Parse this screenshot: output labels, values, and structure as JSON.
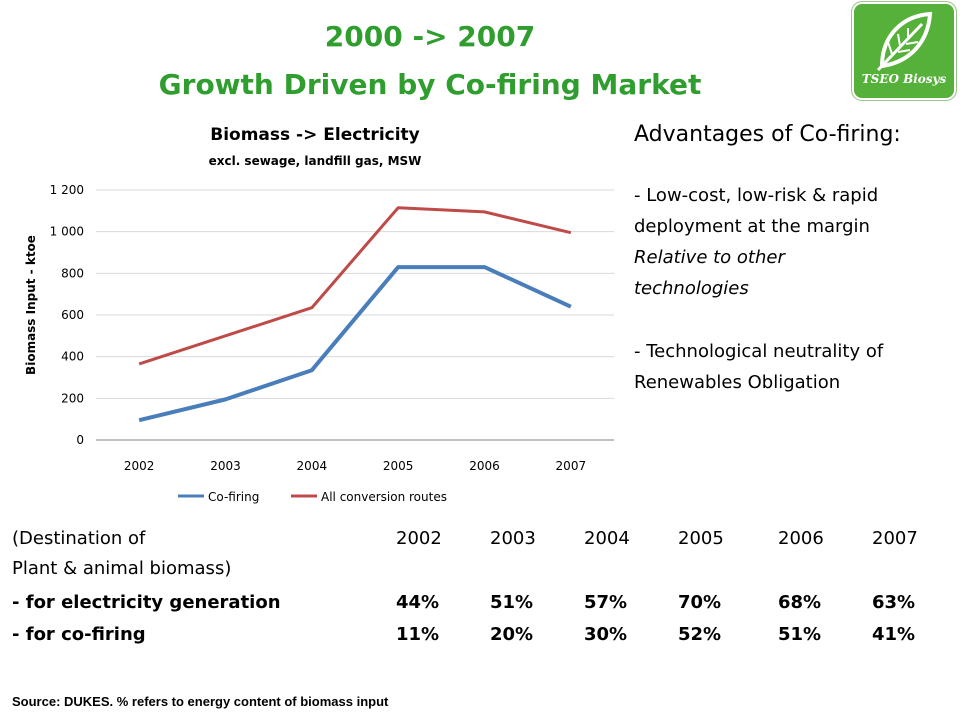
{
  "slide": {
    "title_line1": "2000 -> 2007",
    "title_line2": "Growth Driven by Co-firing Market",
    "logo_text": "TSEO Biosys",
    "colors": {
      "title": "#2f9e2f",
      "cofiring": "#4a7ebb",
      "all_routes": "#be4b48",
      "logo_bg": "#56b13a"
    }
  },
  "chart_data": {
    "type": "line",
    "title": "Biomass -> Electricity",
    "subtitle": "excl. sewage, landfill gas, MSW",
    "ylabel": "Biomass Input - ktoe",
    "xlabel": "",
    "categories": [
      "2002",
      "2003",
      "2004",
      "2005",
      "2006",
      "2007"
    ],
    "yticks": [
      "0",
      "200",
      "400",
      "600",
      "800",
      "1 000",
      "1 200"
    ],
    "ylim": [
      0,
      1200
    ],
    "grid": true,
    "legend": "bottom",
    "series": [
      {
        "name": "Co-firing",
        "values": [
          95,
          195,
          335,
          830,
          830,
          640
        ],
        "color": "#4a7ebb"
      },
      {
        "name": "All conversion routes",
        "values": [
          365,
          500,
          635,
          1115,
          1095,
          995
        ],
        "color": "#be4b48"
      }
    ]
  },
  "advantages": {
    "heading": "Advantages of Co-firing:",
    "item1_line1": "- Low-cost, low-risk & rapid",
    "item1_line2": "deployment at the margin",
    "item1_note1": "Relative to other",
    "item1_note2": "technologies",
    "item2_line1": "- Technological neutrality of",
    "item2_line2": "Renewables Obligation"
  },
  "table": {
    "header_line1": "(Destination of",
    "header_line2": "Plant & animal biomass)",
    "years": [
      "2002",
      "2003",
      "2004",
      "2005",
      "2006",
      "2007"
    ],
    "rows": [
      {
        "label": "- for electricity generation",
        "values": [
          "44%",
          "51%",
          "57%",
          "70%",
          "68%",
          "63%"
        ]
      },
      {
        "label": "- for co-firing",
        "values": [
          "11%",
          "20%",
          "30%",
          "52%",
          "51%",
          "41%"
        ]
      }
    ]
  },
  "source": "Source: DUKES. % refers to energy content of biomass input"
}
